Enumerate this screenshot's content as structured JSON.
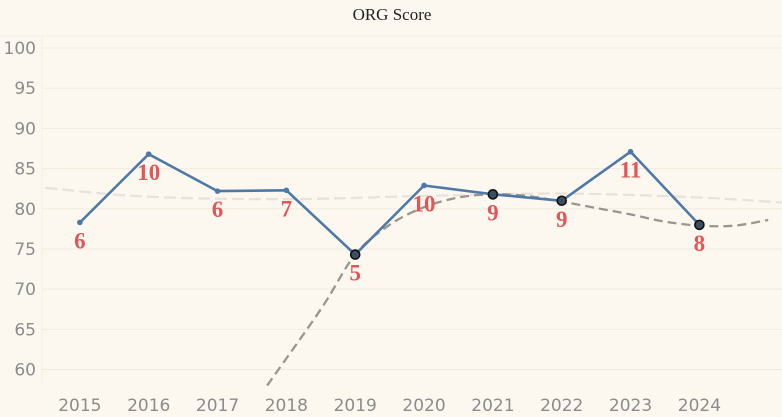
{
  "chart_data": {
    "type": "line",
    "title": "ORG Score",
    "xlabel": "",
    "ylabel": "",
    "x": [
      "2015",
      "2016",
      "2017",
      "2018",
      "2019",
      "2020",
      "2021",
      "2022",
      "2023",
      "2024"
    ],
    "series": [
      {
        "values": [
          78.3,
          86.8,
          82.2,
          82.3,
          74.3,
          82.9,
          81.8,
          81.0,
          87.1,
          78.0
        ],
        "point_labels": [
          "6",
          "10",
          "6",
          "7",
          "5",
          "10",
          "9",
          "9",
          "11",
          "8"
        ]
      }
    ],
    "highlighted_points": [
      "2019",
      "2021",
      "2022",
      "2024"
    ],
    "trend_lines": [
      {
        "style": "dashed-light",
        "x": [
          2014.5,
          2016,
          2018,
          2020,
          2022,
          2024,
          2025.5
        ],
        "values": [
          82.6,
          81.5,
          81.2,
          81.6,
          81.9,
          81.4,
          80.6
        ]
      },
      {
        "style": "dashed-dark",
        "x": [
          2017.72,
          2018.5,
          2019,
          2019.5,
          2020,
          2020.5,
          2021,
          2021.5,
          2022,
          2022.5,
          2023,
          2023.5,
          2024,
          2024.5,
          2025
        ],
        "values": [
          58.0,
          67.5,
          74.3,
          78.0,
          80.2,
          81.4,
          81.8,
          81.6,
          80.9,
          80.1,
          79.3,
          78.4,
          77.9,
          77.9,
          78.6
        ]
      }
    ],
    "y_ticks": [
      60,
      65,
      70,
      75,
      80,
      85,
      90,
      95,
      100
    ],
    "ylim": [
      58.2,
      101.5
    ],
    "xlim": [
      2014.45,
      2025.2
    ],
    "grid": true,
    "colors": {
      "background": "#fdf8ef",
      "line": "#4e79a7",
      "point_label": "#e15759",
      "marker_fill": "#3b4f60",
      "marker_edge": "#111111",
      "trend_light": "#e6e2dc",
      "trend_dark": "#9a968f",
      "grid": "#f1ebdf",
      "tick_text": "#8c8c8c",
      "title_text": "#222222"
    }
  }
}
